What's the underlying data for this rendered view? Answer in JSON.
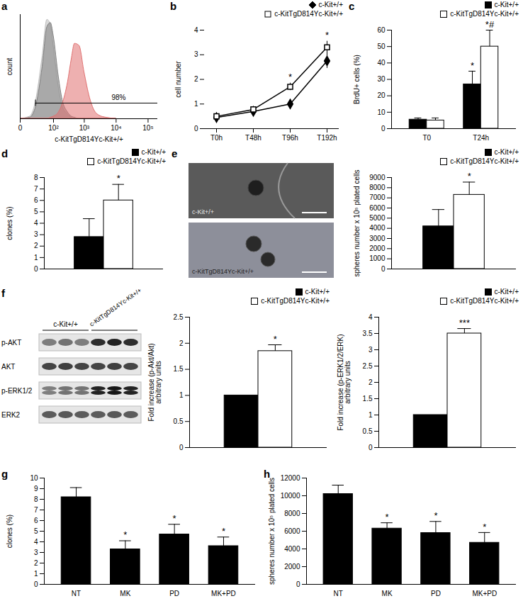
{
  "chart_data": [
    {
      "title": "a",
      "type": "area",
      "log": "x",
      "tick_labels": "x",
      "xlabel": "c-KitTgD814Yc-Kit+/+",
      "ylabel": "count",
      "x": [
        0,
        10,
        20,
        40,
        60,
        80,
        100,
        150,
        200,
        300,
        400,
        500,
        700,
        1000,
        1500,
        2000,
        3000,
        5000,
        10000
      ],
      "series": [
        {
          "color": "#bdbdbd",
          "values": [
            0,
            2,
            15,
            60,
            95,
            90,
            70,
            30,
            12,
            4,
            1,
            0,
            0,
            0,
            0,
            0,
            0,
            0,
            0
          ]
        },
        {
          "color": "#7f7f7f",
          "values": [
            0,
            1,
            10,
            50,
            88,
            92,
            80,
            40,
            18,
            6,
            2,
            1,
            0,
            0,
            0,
            0,
            0,
            0,
            0
          ]
        },
        {
          "color": "#e07070",
          "values": [
            0,
            0,
            0,
            0,
            0,
            1,
            2,
            6,
            14,
            35,
            58,
            72,
            70,
            45,
            20,
            9,
            3,
            1,
            0
          ]
        }
      ],
      "xlim": [
        0,
        200000
      ],
      "ylim": [
        0,
        100
      ],
      "xticks": [
        0,
        {
          "value": 100,
          "label": "10²"
        },
        {
          "value": 1000,
          "label": "10³"
        },
        {
          "value": 10000,
          "label": "10⁴"
        },
        {
          "value": 100000,
          "label": "10⁵"
        }
      ],
      "gate": {
        "x": [
          20,
          200000
        ],
        "y": 15,
        "label": "98%"
      }
    },
    {
      "title": "b",
      "type": "line",
      "legend": "top-right",
      "ylabel": "cell number",
      "categories": [
        "T0h",
        "T48h",
        "T96h",
        "T192h"
      ],
      "ylim": [
        0,
        4
      ],
      "yticks": [
        0,
        1,
        2,
        3,
        4
      ],
      "series": [
        {
          "name": "c-Kit+/+",
          "color": "#000000",
          "marker": "diamond",
          "values": [
            0.45,
            0.7,
            1.0,
            2.75
          ],
          "errors": [
            0.08,
            0.12,
            0.15,
            0.3
          ]
        },
        {
          "name": "c-KitTgD814Yc-Kit+/+",
          "color": "#000000",
          "marker": "square_open",
          "values": [
            0.5,
            0.78,
            1.7,
            3.3
          ],
          "errors": [
            0.08,
            0.12,
            0.15,
            0.25
          ],
          "significance": [
            null,
            null,
            "*",
            "*"
          ]
        }
      ]
    },
    {
      "title": "c",
      "type": "bar",
      "legend": "top-right",
      "ylabel": "BrdU+ cells (%)",
      "categories": [
        "T0",
        "T24h"
      ],
      "ylim": [
        0,
        60
      ],
      "yticks": [
        0,
        10,
        20,
        30,
        40,
        50,
        60
      ],
      "series": [
        {
          "name": "c-Kit+/+",
          "color": "#000000",
          "values": [
            5.5,
            27
          ],
          "errors": [
            1,
            8
          ],
          "significance": [
            null,
            "*"
          ]
        },
        {
          "name": "c-KitTgD814Yc-Kit+/+",
          "color": "#ffffff",
          "values": [
            5,
            50
          ],
          "errors": [
            1.5,
            10
          ],
          "significance": [
            null,
            "*#"
          ]
        }
      ]
    },
    {
      "title": "d",
      "type": "bar",
      "legend": "top-right",
      "ylabel": "clones (%)",
      "categories": [
        null
      ],
      "ylim": [
        0,
        8
      ],
      "yticks": [
        0,
        1,
        2,
        3,
        4,
        5,
        6,
        7,
        8
      ],
      "series": [
        {
          "name": "c-Kit+/+",
          "color": "#000000",
          "values": [
            2.8
          ],
          "errors": [
            1.6
          ]
        },
        {
          "name": "c-KitTgD814Yc-Kit+/+",
          "color": "#ffffff",
          "values": [
            6.0
          ],
          "errors": [
            1.4
          ],
          "significance": [
            "*"
          ]
        }
      ]
    },
    {
      "title": "e",
      "type": "bar",
      "legend": "top-right",
      "ylabel": "spheres number x 10⁵ plated cells",
      "images": [
        "c-Kit+/+",
        "c-KitTgD814Yc-Kit+/+"
      ],
      "categories": [
        null
      ],
      "ylim": [
        0,
        9000
      ],
      "yticks": [
        0,
        1000,
        2000,
        3000,
        4000,
        5000,
        6000,
        7000,
        8000,
        9000
      ],
      "series": [
        {
          "name": "c-Kit+/+",
          "color": "#000000",
          "values": [
            4200
          ],
          "errors": [
            1650
          ]
        },
        {
          "name": "c-KitTgD814Yc-Kit+/+",
          "color": "#ffffff",
          "values": [
            7300
          ],
          "errors": [
            1250
          ],
          "significance": [
            "*"
          ]
        }
      ]
    },
    {
      "title": "f",
      "type": "blot",
      "blot": {
        "rows": [
          "p-AKT",
          "AKT",
          "p-ERK1/2",
          "ERK2"
        ],
        "groups": [
          "c-Kit+/+",
          "c-KitTgD814Yc-Kit+/+"
        ]
      }
    },
    {
      "type": "bar",
      "legend": "top-right",
      "ylabel": "Fold increase (p-Akt/Akt)\narbitrary units",
      "categories": [
        null
      ],
      "ylim": [
        0,
        2.5
      ],
      "yticks": [
        0,
        0.5,
        1,
        1.5,
        2,
        2.5
      ],
      "series": [
        {
          "name": "c-Kit+/+",
          "color": "#000000",
          "values": [
            1
          ]
        },
        {
          "name": "c-KitTgD814Yc-Kit+/+",
          "color": "#ffffff",
          "values": [
            1.85
          ],
          "errors": [
            0.12
          ],
          "significance": [
            "*"
          ]
        }
      ]
    },
    {
      "type": "bar",
      "legend": "top-right",
      "ylabel": "Fold increase (p-ERK1/2/ERK)\narbitrary units",
      "categories": [
        null
      ],
      "ylim": [
        0,
        4
      ],
      "yticks": [
        0,
        0.5,
        1,
        1.5,
        2,
        2.5,
        3,
        3.5,
        4
      ],
      "series": [
        {
          "name": "c-Kit+/+",
          "color": "#000000",
          "values": [
            1
          ]
        },
        {
          "name": "c-KitTgD814Yc-Kit+/+",
          "color": "#ffffff",
          "values": [
            3.5
          ],
          "errors": [
            0.15
          ],
          "significance": [
            "***"
          ]
        }
      ]
    },
    {
      "title": "g",
      "type": "bar",
      "ylabel": "clones (%)",
      "categories": [
        "NT",
        "MK",
        "PD",
        "MK+PD"
      ],
      "ylim": [
        0,
        10
      ],
      "yticks": [
        0,
        1,
        2,
        3,
        4,
        5,
        6,
        7,
        8,
        9,
        10
      ],
      "series": [
        {
          "color": "#000000",
          "values": [
            8.2,
            3.3,
            4.7,
            3.6
          ],
          "errors": [
            0.9,
            0.8,
            0.95,
            0.85
          ],
          "significance": [
            null,
            "*",
            "*",
            "*"
          ]
        }
      ]
    },
    {
      "title": "h",
      "type": "bar",
      "ylabel": "spheres number x 10⁵ plated cells",
      "categories": [
        "NT",
        "MK",
        "PD",
        "MK+PD"
      ],
      "ylim": [
        0,
        12000
      ],
      "yticks": [
        0,
        2000,
        4000,
        6000,
        8000,
        10000,
        12000
      ],
      "series": [
        {
          "color": "#000000",
          "values": [
            10200,
            6300,
            5800,
            4700
          ],
          "errors": [
            1000,
            650,
            1300,
            1150
          ],
          "significance": [
            null,
            "*",
            "*",
            "*"
          ]
        }
      ]
    }
  ]
}
